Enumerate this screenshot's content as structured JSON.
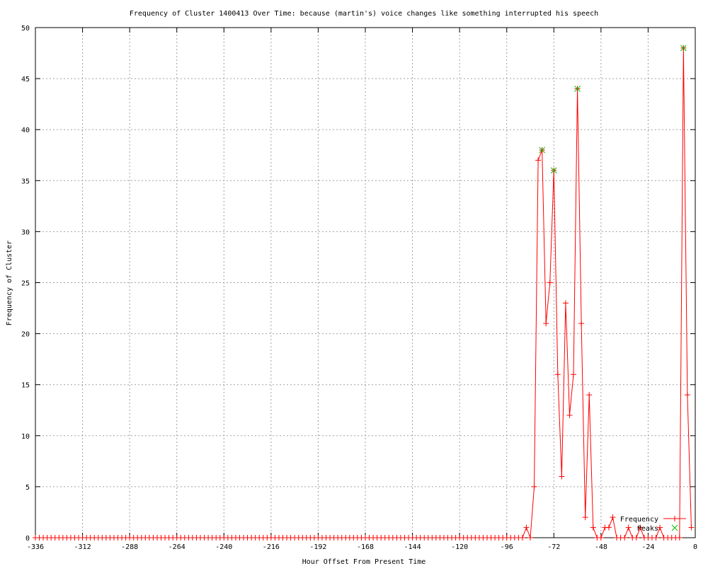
{
  "chart_data": {
    "type": "line",
    "title": "Frequency of Cluster 1400413 Over Time: because (martin's) voice changes like something interrupted his speech",
    "xlabel": "Hour Offset From Present Time",
    "ylabel": "Frequency of Cluster",
    "xlim": [
      -336,
      0
    ],
    "ylim": [
      0,
      50
    ],
    "xticks": [
      -336,
      -312,
      -288,
      -264,
      -240,
      -216,
      -192,
      -168,
      -144,
      -120,
      -96,
      -72,
      -48,
      -24,
      0
    ],
    "yticks": [
      0,
      5,
      10,
      15,
      20,
      25,
      30,
      35,
      40,
      45,
      50
    ],
    "grid": true,
    "legend_position": "bottom-right",
    "series": [
      {
        "name": "Frequency",
        "color": "#ff0000",
        "marker": "plus",
        "style": "linespoints",
        "x": [
          -336,
          -334,
          -332,
          -330,
          -328,
          -326,
          -324,
          -322,
          -320,
          -318,
          -316,
          -314,
          -312,
          -310,
          -308,
          -306,
          -304,
          -302,
          -300,
          -298,
          -296,
          -294,
          -292,
          -290,
          -288,
          -286,
          -284,
          -282,
          -280,
          -278,
          -276,
          -274,
          -272,
          -270,
          -268,
          -266,
          -264,
          -262,
          -260,
          -258,
          -256,
          -254,
          -252,
          -250,
          -248,
          -246,
          -244,
          -242,
          -240,
          -238,
          -236,
          -234,
          -232,
          -230,
          -228,
          -226,
          -224,
          -222,
          -220,
          -218,
          -216,
          -214,
          -212,
          -210,
          -208,
          -206,
          -204,
          -202,
          -200,
          -198,
          -196,
          -194,
          -192,
          -190,
          -188,
          -186,
          -184,
          -182,
          -180,
          -178,
          -176,
          -174,
          -172,
          -170,
          -168,
          -166,
          -164,
          -162,
          -160,
          -158,
          -156,
          -154,
          -152,
          -150,
          -148,
          -146,
          -144,
          -142,
          -140,
          -138,
          -136,
          -134,
          -132,
          -130,
          -128,
          -126,
          -124,
          -122,
          -120,
          -118,
          -116,
          -114,
          -112,
          -110,
          -108,
          -106,
          -104,
          -102,
          -100,
          -98,
          -96,
          -94,
          -92,
          -90,
          -88,
          -86,
          -84,
          -82,
          -80,
          -78,
          -76,
          -74,
          -72,
          -70,
          -68,
          -66,
          -64,
          -62,
          -60,
          -58,
          -56,
          -54,
          -52,
          -50,
          -48,
          -46,
          -44,
          -42,
          -40,
          -38,
          -36,
          -34,
          -32,
          -30,
          -28,
          -26,
          -24,
          -22,
          -20,
          -18,
          -16,
          -14,
          -12,
          -10,
          -8,
          -6,
          -4,
          -2
        ],
        "y": [
          0,
          0,
          0,
          0,
          0,
          0,
          0,
          0,
          0,
          0,
          0,
          0,
          0,
          0,
          0,
          0,
          0,
          0,
          0,
          0,
          0,
          0,
          0,
          0,
          0,
          0,
          0,
          0,
          0,
          0,
          0,
          0,
          0,
          0,
          0,
          0,
          0,
          0,
          0,
          0,
          0,
          0,
          0,
          0,
          0,
          0,
          0,
          0,
          0,
          0,
          0,
          0,
          0,
          0,
          0,
          0,
          0,
          0,
          0,
          0,
          0,
          0,
          0,
          0,
          0,
          0,
          0,
          0,
          0,
          0,
          0,
          0,
          0,
          0,
          0,
          0,
          0,
          0,
          0,
          0,
          0,
          0,
          0,
          0,
          0,
          0,
          0,
          0,
          0,
          0,
          0,
          0,
          0,
          0,
          0,
          0,
          0,
          0,
          0,
          0,
          0,
          0,
          0,
          0,
          0,
          0,
          0,
          0,
          0,
          0,
          0,
          0,
          0,
          0,
          0,
          0,
          0,
          0,
          0,
          0,
          0,
          0,
          0,
          0,
          0,
          1,
          0,
          5,
          37,
          38,
          21,
          25,
          36,
          16,
          6,
          23,
          12,
          16,
          44,
          21,
          2,
          14,
          1,
          0,
          0,
          1,
          1,
          2,
          0,
          0,
          0,
          1,
          0,
          0,
          1,
          0,
          0,
          0,
          0,
          1,
          0,
          0,
          0,
          0,
          0,
          48,
          14,
          1
        ]
      },
      {
        "name": "Peaks",
        "color": "#00c000",
        "marker": "cross",
        "style": "points",
        "x": [
          -78,
          -72,
          -60,
          -6
        ],
        "y": [
          38,
          36,
          44,
          48
        ]
      }
    ]
  }
}
